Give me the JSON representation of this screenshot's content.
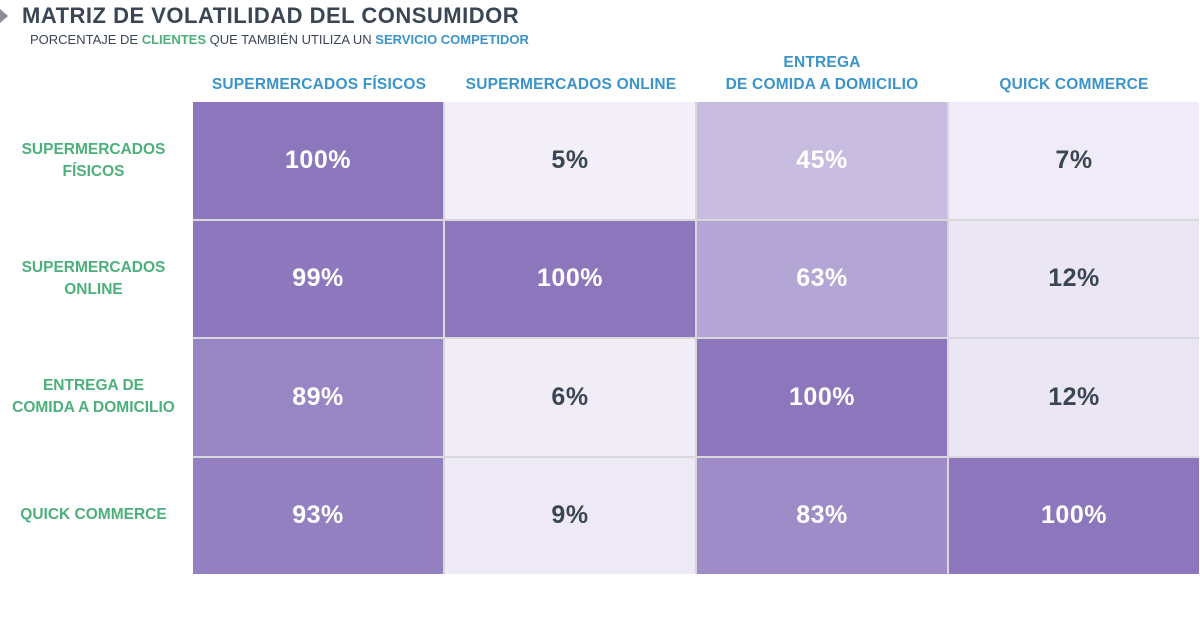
{
  "header": {
    "title": "MATRIZ DE VOLATILIDAD DEL CONSUMIDOR",
    "subtitle_parts": [
      {
        "text": "PORCENTAJE DE ",
        "style": "plain"
      },
      {
        "text": "CLIENTES",
        "style": "green"
      },
      {
        "text": " QUE TAMBIÉN UTILIZA UN ",
        "style": "plain"
      },
      {
        "text": "SERVICIO COMPETIDOR",
        "style": "blue"
      }
    ]
  },
  "colors": {
    "column_header": "#3b94c9",
    "row_header": "#4cb07a",
    "cell_max": "#8c77bd",
    "cell_min": "#f7f5fb",
    "text_dark": "#3b4654",
    "text_light": "#ffffff"
  },
  "chart_data": {
    "type": "heatmap",
    "title": "MATRIZ DE VOLATILIDAD DEL CONSUMIDOR",
    "columns": [
      "SUPERMERCADOS FÍSICOS",
      "SUPERMERCADOS ONLINE",
      "ENTREGA\nDE COMIDA A DOMICILIO",
      "QUICK COMMERCE"
    ],
    "rows": [
      "SUPERMERCADOS\nFÍSICOS",
      "SUPERMERCADOS\nONLINE",
      "ENTREGA DE\nCOMIDA A DOMICILIO",
      "QUICK COMMERCE"
    ],
    "values": [
      [
        100,
        5,
        45,
        7
      ],
      [
        99,
        100,
        63,
        12
      ],
      [
        89,
        6,
        100,
        12
      ],
      [
        93,
        9,
        83,
        100
      ]
    ],
    "unit": "%"
  }
}
